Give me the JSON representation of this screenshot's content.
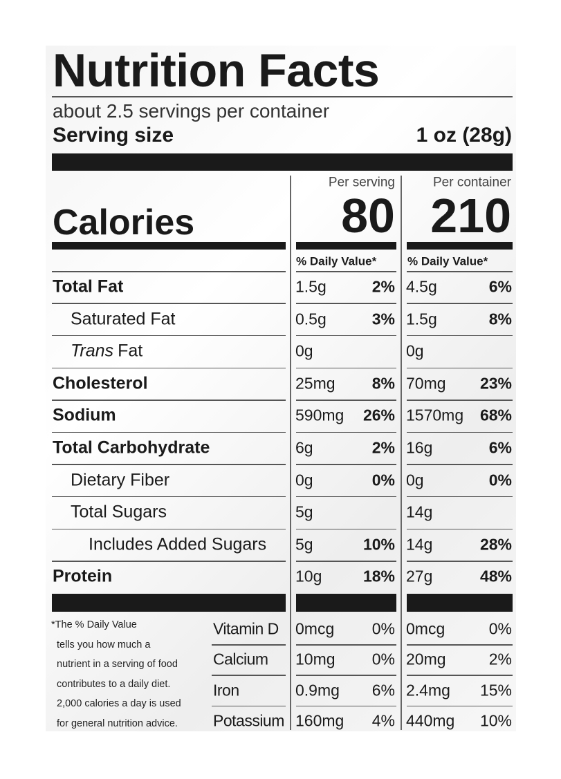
{
  "title": "Nutrition Facts",
  "servings": "about 2.5 servings per container",
  "serving_size": {
    "label": "Serving size",
    "value": "1 oz (28g)"
  },
  "calories": {
    "label": "Calories",
    "per_serving_label": "Per serving",
    "per_serving": 80,
    "per_container_label": "Per container",
    "per_container": 210
  },
  "daily_value_header": [
    "% Daily Value*",
    "% Daily Value*"
  ],
  "nutrients": [
    {
      "name": "Total Fat",
      "serving": {
        "amount": "1.5g",
        "dv": "2%"
      },
      "container": {
        "amount": "4.5g",
        "dv": "6%"
      }
    },
    {
      "name": "Saturated Fat",
      "serving": {
        "amount": "0.5g",
        "dv": "3%"
      },
      "container": {
        "amount": "1.5g",
        "dv": "8%"
      }
    },
    {
      "name_italic": "Trans",
      "name": "Fat",
      "serving": {
        "amount": "0g"
      },
      "container": {
        "amount": "0g"
      }
    },
    {
      "name": "Cholesterol",
      "serving": {
        "amount": "25mg",
        "dv": "8%"
      },
      "container": {
        "amount": "70mg",
        "dv": "23%"
      }
    },
    {
      "name": "Sodium",
      "serving": {
        "amount": "590mg",
        "dv": "26%"
      },
      "container": {
        "amount": "1570mg",
        "dv": "68%"
      }
    },
    {
      "name": "Total Carbohydrate",
      "serving": {
        "amount": "6g",
        "dv": "2%"
      },
      "container": {
        "amount": "16g",
        "dv": "6%"
      }
    },
    {
      "name": "Dietary Fiber",
      "serving": {
        "amount": "0g",
        "dv": "0%"
      },
      "container": {
        "amount": "0g",
        "dv": "0%"
      }
    },
    {
      "name": "Total Sugars",
      "serving": {
        "amount": "5g"
      },
      "container": {
        "amount": "14g"
      }
    },
    {
      "name": "Includes Added Sugars",
      "serving": {
        "amount": "5g",
        "dv": "10%"
      },
      "container": {
        "amount": "14g",
        "dv": "28%"
      }
    },
    {
      "name": "Protein",
      "serving": {
        "amount": "10g",
        "dv": "18%"
      },
      "container": {
        "amount": "27g",
        "dv": "48%"
      }
    }
  ],
  "vitamins": [
    {
      "name": "Vitamin D",
      "serving": {
        "amount": "0mcg",
        "dv": "0%"
      },
      "container": {
        "amount": "0mcg",
        "dv": "0%"
      }
    },
    {
      "name": "Calcium",
      "serving": {
        "amount": "10mg",
        "dv": "0%"
      },
      "container": {
        "amount": "20mg",
        "dv": "2%"
      }
    },
    {
      "name": "Iron",
      "serving": {
        "amount": "0.9mg",
        "dv": "6%"
      },
      "container": {
        "amount": "2.4mg",
        "dv": "15%"
      }
    },
    {
      "name": "Potassium",
      "serving": {
        "amount": "160mg",
        "dv": "4%"
      },
      "container": {
        "amount": "440mg",
        "dv": "10%"
      }
    }
  ],
  "footnote": [
    "*The % Daily Value",
    "tells you how much a",
    "nutrient in a serving of food",
    "contributes to a daily diet.",
    "2,000 calories a day is used",
    "for general nutrition advice."
  ]
}
